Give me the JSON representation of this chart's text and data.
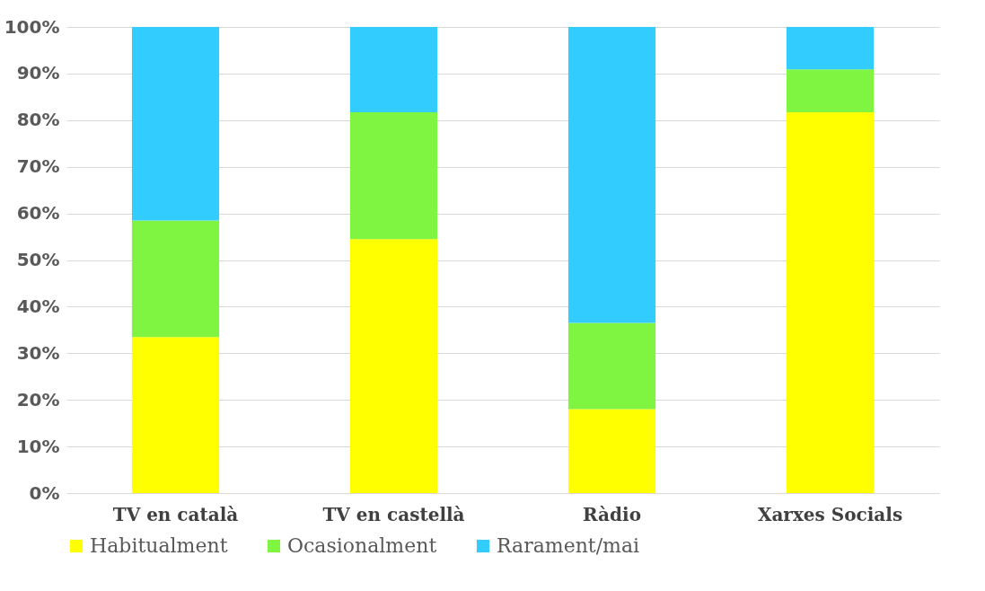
{
  "chart_data": {
    "type": "bar",
    "stacked": true,
    "categories": [
      "TV en català",
      "TV en castellà",
      "Ràdio",
      "Xarxes Socials"
    ],
    "series": [
      {
        "name": "Habitualment",
        "color": "#ffff00",
        "values": [
          33.5,
          54.5,
          18,
          81.7
        ]
      },
      {
        "name": "Ocasionalment",
        "color": "#7ff542",
        "values": [
          25,
          27.2,
          18.5,
          9.2
        ]
      },
      {
        "name": "Rarament/mai",
        "color": "#33ccff",
        "values": [
          41.5,
          18.3,
          63.5,
          9.1
        ]
      }
    ],
    "ylim": [
      0,
      100
    ],
    "yticks": [
      {
        "value": 0,
        "label": "0%"
      },
      {
        "value": 10,
        "label": "10%"
      },
      {
        "value": 20,
        "label": "20%"
      },
      {
        "value": 30,
        "label": "30%"
      },
      {
        "value": 40,
        "label": "40%"
      },
      {
        "value": 50,
        "label": "50%"
      },
      {
        "value": 60,
        "label": "60%"
      },
      {
        "value": 70,
        "label": "70%"
      },
      {
        "value": 80,
        "label": "80%"
      },
      {
        "value": 90,
        "label": "90%"
      },
      {
        "value": 100,
        "label": "100%"
      }
    ],
    "grid": "y",
    "legend": "bottom"
  }
}
